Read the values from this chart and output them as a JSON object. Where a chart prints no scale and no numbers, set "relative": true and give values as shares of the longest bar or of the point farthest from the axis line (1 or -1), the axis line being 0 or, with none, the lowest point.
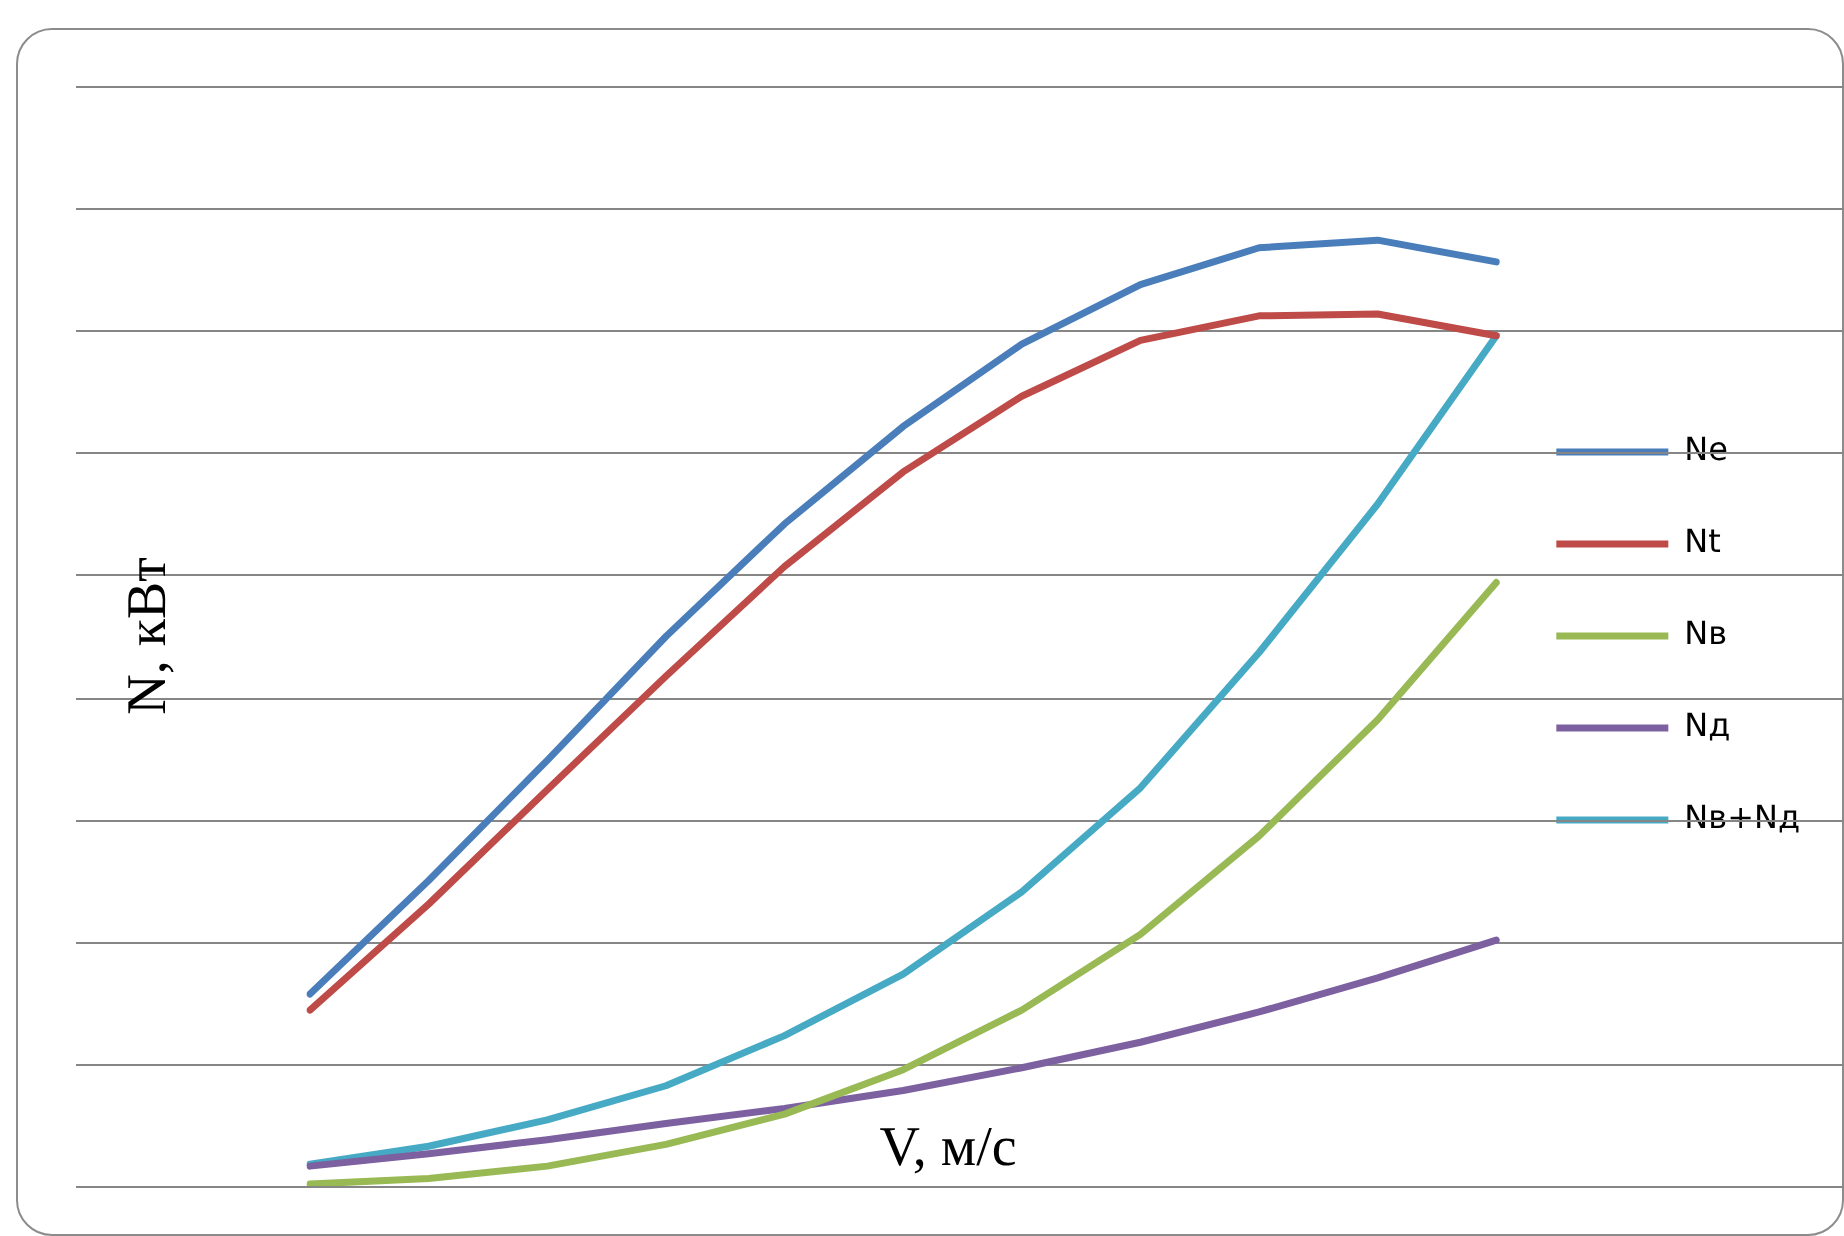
{
  "chart_data": {
    "type": "line",
    "relative": true,
    "xlabel": "V, м/с",
    "ylabel": "N, кВт",
    "categories": [
      null,
      null,
      null,
      null,
      null,
      null,
      null,
      null,
      null,
      null,
      null
    ],
    "series": [
      {
        "name": "Ne",
        "color": "#4a7ebb",
        "values": [
          0.203,
          0.323,
          0.45,
          0.581,
          0.7,
          0.803,
          0.89,
          0.953,
          0.992,
          1,
          0.977
        ]
      },
      {
        "name": "Nt",
        "color": "#be4b48",
        "values": [
          0.186,
          0.298,
          0.419,
          0.539,
          0.655,
          0.755,
          0.835,
          0.894,
          0.92,
          0.922,
          0.899
        ]
      },
      {
        "name": "Nв",
        "color": "#98b954",
        "values": [
          0.002,
          0.008,
          0.021,
          0.044,
          0.076,
          0.123,
          0.186,
          0.266,
          0.37,
          0.493,
          0.638
        ]
      },
      {
        "name": "Nд",
        "color": "#7d60a0",
        "values": [
          0.021,
          0.034,
          0.049,
          0.066,
          0.082,
          0.101,
          0.125,
          0.152,
          0.184,
          0.22,
          0.26
        ]
      },
      {
        "name": "Nв+Nд",
        "color": "#46aac5",
        "values": [
          0.023,
          0.042,
          0.07,
          0.106,
          0.159,
          0.224,
          0.311,
          0.421,
          0.564,
          0.721,
          0.899
        ]
      }
    ],
    "grid": "y",
    "legend": "right",
    "tick_labels": false,
    "marker": "none",
    "line_style": "solid"
  }
}
